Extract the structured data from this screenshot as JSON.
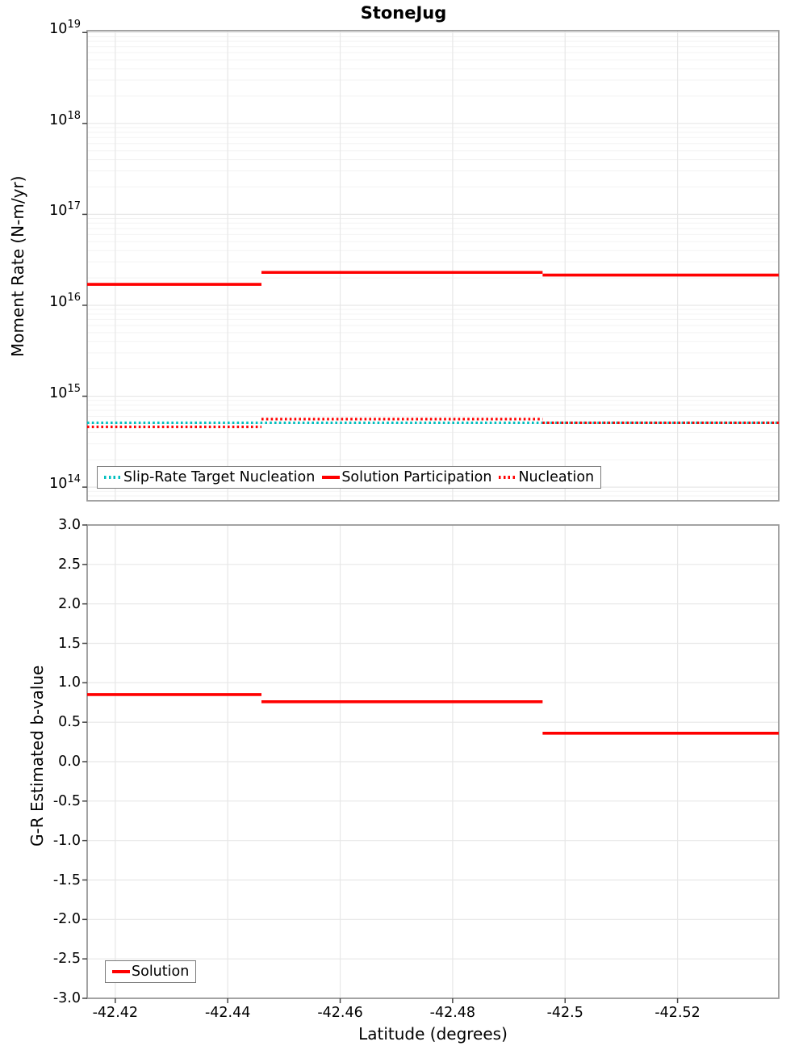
{
  "figure": {
    "title": "StoneJug"
  },
  "x_axis": {
    "label": "Latitude (degrees)",
    "lim": [
      -42.415,
      -42.538
    ],
    "reversed": true,
    "ticks": [
      {
        "label": "-42.42",
        "value": -42.42
      },
      {
        "label": "-42.44",
        "value": -42.44
      },
      {
        "label": "-42.46",
        "value": -42.46
      },
      {
        "label": "-42.48",
        "value": -42.48
      },
      {
        "label": "-42.5",
        "value": -42.5
      },
      {
        "label": "-42.52",
        "value": -42.52
      }
    ]
  },
  "chart_data": [
    {
      "type": "line",
      "panel": "moment-rate",
      "ylabel": "Moment Rate (N-m/yr)",
      "yscale": "log",
      "ylim_exp": [
        13.85,
        19.02
      ],
      "y_ticks_exp": [
        19,
        18,
        17,
        16,
        15,
        14
      ],
      "grid": "major+minor",
      "legend_position": "bottom-left",
      "series": [
        {
          "name": "Slip-Rate Target Nucleation",
          "color": "#00BFBF",
          "line_style": "dotted",
          "steps": [
            {
              "x": [
                -42.415,
                -42.538
              ],
              "y": 510000000000000.0
            }
          ]
        },
        {
          "name": "Solution Participation",
          "color": "#FF0000",
          "line_style": "solid",
          "steps": [
            {
              "x": [
                -42.415,
                -42.446
              ],
              "y": 1.7e+16
            },
            {
              "x": [
                -42.446,
                -42.496
              ],
              "y": 2.3e+16
            },
            {
              "x": [
                -42.496,
                -42.538
              ],
              "y": 2.15e+16
            }
          ]
        },
        {
          "name": "Nucleation",
          "color": "#FF0000",
          "line_style": "dotted",
          "steps": [
            {
              "x": [
                -42.415,
                -42.446
              ],
              "y": 460000000000000.0
            },
            {
              "x": [
                -42.446,
                -42.496
              ],
              "y": 560000000000000.0
            },
            {
              "x": [
                -42.496,
                -42.538
              ],
              "y": 510000000000000.0
            }
          ]
        }
      ]
    },
    {
      "type": "line",
      "panel": "b-value",
      "ylabel": "G-R Estimated b-value",
      "yscale": "linear",
      "ylim": [
        -3.0,
        3.0
      ],
      "y_ticks": [
        {
          "label": "3.0",
          "value": 3.0
        },
        {
          "label": "2.5",
          "value": 2.5
        },
        {
          "label": "2.0",
          "value": 2.0
        },
        {
          "label": "1.5",
          "value": 1.5
        },
        {
          "label": "1.0",
          "value": 1.0
        },
        {
          "label": "0.5",
          "value": 0.5
        },
        {
          "label": "0.0",
          "value": 0.0
        },
        {
          "label": "-0.5",
          "value": -0.5
        },
        {
          "label": "-1.0",
          "value": -1.0
        },
        {
          "label": "-1.5",
          "value": -1.5
        },
        {
          "label": "-2.0",
          "value": -2.0
        },
        {
          "label": "-2.5",
          "value": -2.5
        },
        {
          "label": "-3.0",
          "value": -3.0
        }
      ],
      "grid": "major",
      "legend_position": "bottom-left",
      "series": [
        {
          "name": "Solution",
          "color": "#FF0000",
          "line_style": "solid",
          "steps": [
            {
              "x": [
                -42.415,
                -42.446
              ],
              "y": 0.85
            },
            {
              "x": [
                -42.446,
                -42.496
              ],
              "y": 0.76
            },
            {
              "x": [
                -42.496,
                -42.538
              ],
              "y": 0.36
            }
          ]
        }
      ]
    }
  ],
  "colors": {
    "solution_red": "#FF0000",
    "target_cyan": "#00BFBF",
    "panel_border": "#999999",
    "grid_major": "#e7e7e7",
    "grid_minor": "#f3f3f3"
  }
}
